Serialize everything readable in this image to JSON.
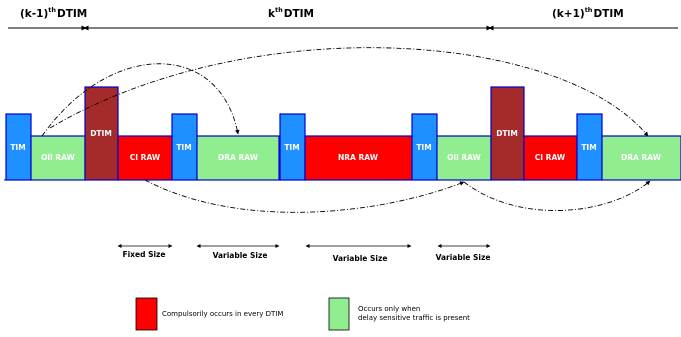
{
  "headers": {
    "prev": {
      "main": "(k-1)",
      "sup": "th",
      "tail": "DTIM"
    },
    "curr": {
      "main": "k",
      "sup": "th",
      "tail": "DTIM"
    },
    "next": {
      "main": "(k+1)",
      "sup": "th",
      "tail": "DTIM"
    }
  },
  "blocks": {
    "tim": "TIM",
    "oll_raw": "Oll RAW",
    "dtim": "DTIM",
    "ci_raw": "CI RAW",
    "dra_raw": "DRA RAW",
    "nra_raw": "NRA RAW"
  },
  "sizes": {
    "fixed": "Fixed Size",
    "variable": "Variable Size"
  },
  "legend": {
    "red_label": "Compulsorily occurs in every DTIM",
    "green_line1": "Occurs only when",
    "green_line2": "delay sensitive traffic is present"
  },
  "colors": {
    "tim": "#1e90ff",
    "dtim": "#a52a2a",
    "red": "#ff0000",
    "green": "#90ee90",
    "border": "#0000cc"
  }
}
